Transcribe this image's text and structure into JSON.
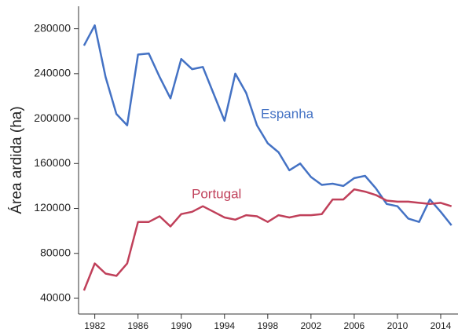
{
  "chart_data": {
    "type": "line",
    "y_label": "Área ardida (ha)",
    "x": [
      1981,
      1982,
      1983,
      1984,
      1985,
      1986,
      1987,
      1988,
      1989,
      1990,
      1991,
      1992,
      1993,
      1994,
      1995,
      1996,
      1997,
      1998,
      1999,
      2000,
      2001,
      2002,
      2003,
      2004,
      2005,
      2006,
      2007,
      2008,
      2009,
      2010,
      2011,
      2012,
      2013,
      2014,
      2015
    ],
    "series": [
      {
        "name": "Espanha",
        "color": "#4472c4",
        "values": [
          265000,
          283000,
          237000,
          204000,
          194000,
          257000,
          258000,
          237000,
          218000,
          253000,
          244000,
          246000,
          222000,
          198000,
          240000,
          223000,
          194000,
          178000,
          170000,
          154000,
          160000,
          148000,
          141000,
          142000,
          140000,
          147000,
          149000,
          138000,
          124000,
          122000,
          111000,
          108000,
          128000,
          117000,
          105000
        ]
      },
      {
        "name": "Portugal",
        "color": "#c0405a",
        "values": [
          47000,
          71000,
          62000,
          60000,
          71000,
          108000,
          108000,
          113000,
          104000,
          115000,
          117000,
          122000,
          117000,
          112000,
          110000,
          114000,
          113000,
          108000,
          114000,
          112000,
          114000,
          114000,
          115000,
          128000,
          128000,
          137000,
          135000,
          132000,
          127000,
          126000,
          126000,
          125000,
          124000,
          125000,
          122000
        ]
      }
    ],
    "xlim": [
      1980.5,
      2015.6
    ],
    "xticks": [
      1982,
      1986,
      1990,
      1994,
      1998,
      2002,
      2006,
      2010,
      2014
    ],
    "ylim": [
      26000,
      300000
    ],
    "yticks": [
      40000,
      80000,
      120000,
      160000,
      200000,
      240000,
      280000
    ]
  }
}
